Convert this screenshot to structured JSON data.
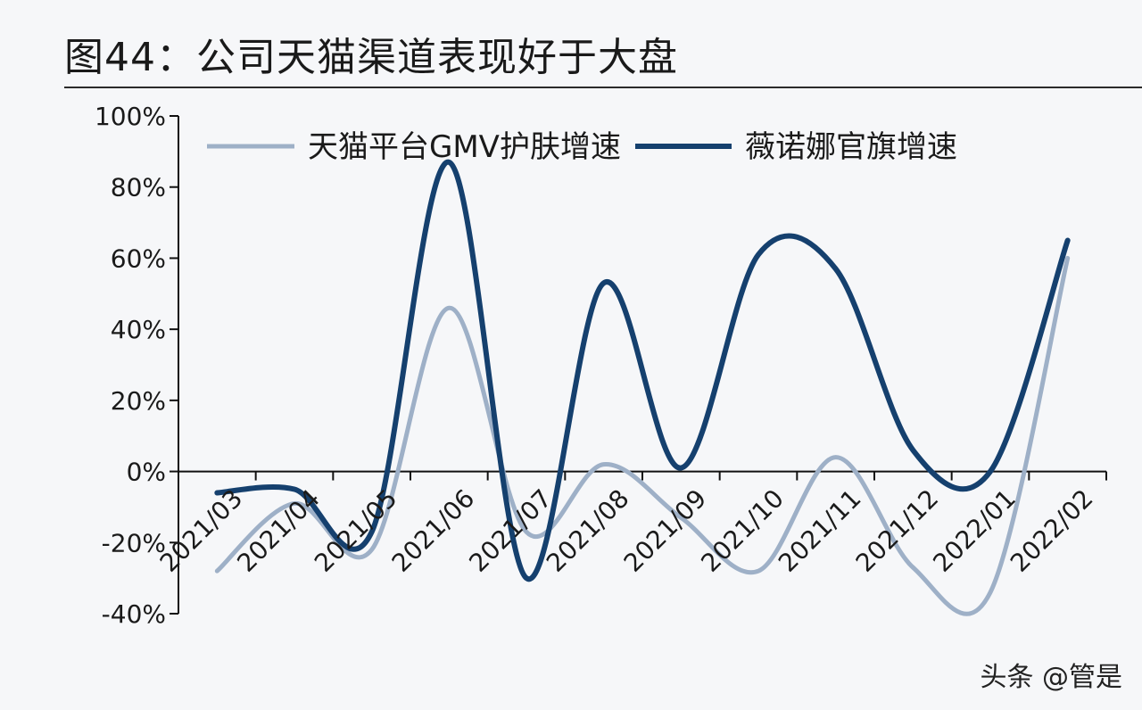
{
  "title": "图44：公司天猫渠道表现好于大盘",
  "watermark": "头条 @管是",
  "colors": {
    "series1": "#9eb0c7",
    "series2": "#15406e",
    "axis": "#111111",
    "text": "#1a1a1a"
  },
  "chart_data": {
    "type": "line",
    "x": [
      "2021/03",
      "2021/04",
      "2021/05",
      "2021/06",
      "2021/07",
      "2021/08",
      "2021/09",
      "2021/10",
      "2021/11",
      "2021/12",
      "2022/01",
      "2022/02"
    ],
    "series": [
      {
        "name": "天猫平台GMV护肤增速",
        "values": [
          -28,
          -9,
          -22,
          46,
          -17,
          2,
          -13,
          -28,
          4,
          -27,
          -34,
          60
        ]
      },
      {
        "name": "薇诺娜官旗增速",
        "values": [
          -6,
          -5,
          -17,
          87,
          -30,
          53,
          1,
          61,
          57,
          6,
          0,
          65
        ]
      }
    ],
    "ylim": [
      -40,
      100
    ],
    "yticks": [
      -40,
      -20,
      0,
      20,
      40,
      60,
      80,
      100
    ],
    "ytick_labels": [
      "-40%",
      "-20%",
      "0%",
      "20%",
      "40%",
      "60%",
      "80%",
      "100%"
    ],
    "legend_position": "top",
    "grid": false
  }
}
